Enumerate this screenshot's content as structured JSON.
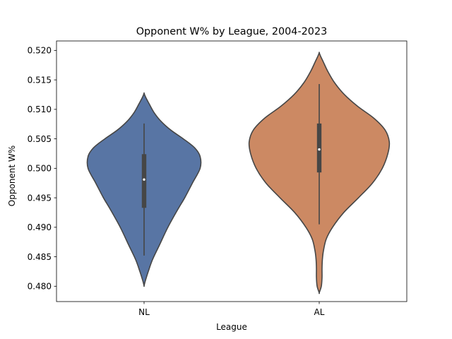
{
  "chart_data": {
    "type": "violin",
    "title": "Opponent W% by League, 2004-2023",
    "xlabel": "League",
    "ylabel": "Opponent W%",
    "categories": [
      "NL",
      "AL"
    ],
    "ylim": [
      0.4774,
      0.5216
    ],
    "yticks": [
      "0.480",
      "0.485",
      "0.490",
      "0.495",
      "0.500",
      "0.505",
      "0.510",
      "0.515",
      "0.520"
    ],
    "grid": false,
    "series": [
      {
        "category": "NL",
        "color": "#5875a4",
        "kde_min": 0.4801,
        "kde_max": 0.5127,
        "whisker_low": 0.4852,
        "whisker_high": 0.5076,
        "q1": 0.4933,
        "median": 0.4981,
        "q3": 0.5024,
        "profile": [
          [
            0.4801,
            0.0
          ],
          [
            0.481,
            0.02
          ],
          [
            0.4825,
            0.06
          ],
          [
            0.4845,
            0.12
          ],
          [
            0.487,
            0.22
          ],
          [
            0.49,
            0.34
          ],
          [
            0.493,
            0.48
          ],
          [
            0.495,
            0.58
          ],
          [
            0.4975,
            0.69
          ],
          [
            0.5,
            0.8
          ],
          [
            0.502,
            0.8
          ],
          [
            0.5035,
            0.72
          ],
          [
            0.505,
            0.56
          ],
          [
            0.5065,
            0.38
          ],
          [
            0.508,
            0.24
          ],
          [
            0.5095,
            0.14
          ],
          [
            0.511,
            0.07
          ],
          [
            0.512,
            0.025
          ],
          [
            0.5127,
            0.0
          ]
        ]
      },
      {
        "category": "AL",
        "color": "#cc8963",
        "kde_min": 0.4789,
        "kde_max": 0.5196,
        "whisker_low": 0.4905,
        "whisker_high": 0.5143,
        "q1": 0.4993,
        "median": 0.5032,
        "q3": 0.5076,
        "profile": [
          [
            0.4789,
            0.0
          ],
          [
            0.48,
            0.03
          ],
          [
            0.4815,
            0.04
          ],
          [
            0.483,
            0.04
          ],
          [
            0.4845,
            0.045
          ],
          [
            0.486,
            0.06
          ],
          [
            0.488,
            0.1
          ],
          [
            0.49,
            0.19
          ],
          [
            0.4925,
            0.35
          ],
          [
            0.495,
            0.56
          ],
          [
            0.4975,
            0.76
          ],
          [
            0.5,
            0.9
          ],
          [
            0.5025,
            0.98
          ],
          [
            0.5045,
            1.0
          ],
          [
            0.5065,
            0.94
          ],
          [
            0.5085,
            0.78
          ],
          [
            0.5105,
            0.55
          ],
          [
            0.5125,
            0.36
          ],
          [
            0.5145,
            0.22
          ],
          [
            0.5165,
            0.12
          ],
          [
            0.518,
            0.06
          ],
          [
            0.519,
            0.02
          ],
          [
            0.5196,
            0.0
          ]
        ]
      }
    ]
  }
}
